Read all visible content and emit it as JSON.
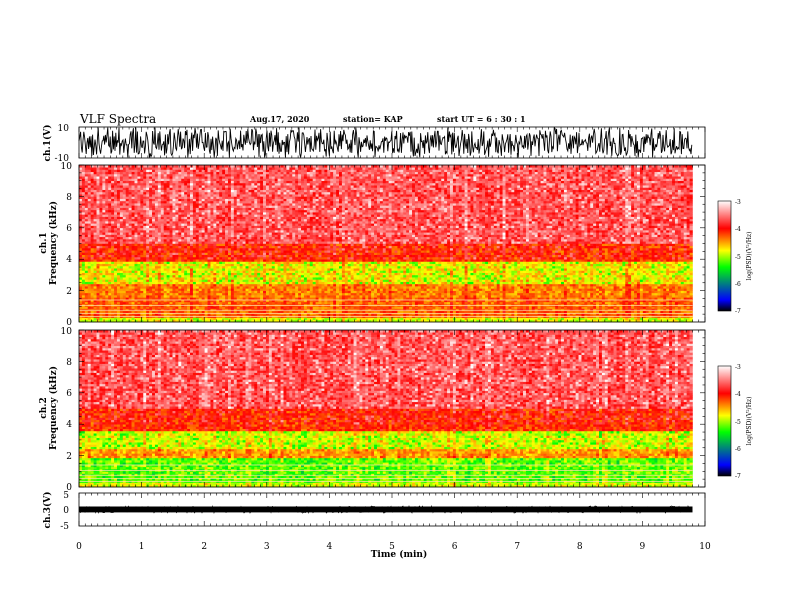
{
  "header": {
    "title": "VLF Spectra",
    "date": "Aug.17, 2020",
    "station": "station= KAP",
    "start": "start  UT =  6 : 30 : 1"
  },
  "chart_data": [
    {
      "type": "line",
      "name": "ch1-waveform",
      "ylabel": "ch.1(V)",
      "ylim": [
        -10,
        10
      ],
      "yticks": [
        "10",
        "-10"
      ],
      "xlim": [
        0,
        10
      ]
    },
    {
      "type": "heatmap",
      "name": "ch1-spectrogram",
      "ylabel_top": "ch.1",
      "ylabel": "Frequency  (kHz)",
      "ylim": [
        0,
        10
      ],
      "yticks": [
        "0",
        "2",
        "4",
        "6",
        "8",
        "10"
      ],
      "xlim": [
        0,
        10
      ],
      "colorbar": {
        "label": "log(PSD)(V²/Hz)",
        "range": [
          -7,
          -3
        ],
        "ticks": [
          "-3",
          "-4",
          "-5",
          "-6",
          "-7"
        ],
        "colors": [
          "#000000",
          "#0000ff",
          "#00ff00",
          "#ffff00",
          "#ff0000",
          "#ffffff"
        ]
      }
    },
    {
      "type": "heatmap",
      "name": "ch2-spectrogram",
      "ylabel_top": "ch.2",
      "ylabel": "Frequency  (kHz)",
      "ylim": [
        0,
        10
      ],
      "yticks": [
        "0",
        "2",
        "4",
        "6",
        "8",
        "10"
      ],
      "xlim": [
        0,
        10
      ],
      "colorbar": {
        "label": "log(PSD)(V²/Hz)",
        "range": [
          -7,
          -3
        ],
        "ticks": [
          "-3",
          "-4",
          "-5",
          "-6",
          "-7"
        ],
        "colors": [
          "#000000",
          "#0000ff",
          "#00ff00",
          "#ffff00",
          "#ff0000",
          "#ffffff"
        ]
      }
    },
    {
      "type": "line",
      "name": "ch3-waveform",
      "ylabel": "ch.3(V)",
      "ylim": [
        -5,
        5
      ],
      "yticks": [
        "5",
        "0",
        "-5"
      ],
      "xlim": [
        0,
        10
      ]
    }
  ],
  "xaxis": {
    "label": "Time  (min)",
    "ticks": [
      "0",
      "1",
      "2",
      "3",
      "4",
      "5",
      "6",
      "7",
      "8",
      "9",
      "10"
    ]
  }
}
